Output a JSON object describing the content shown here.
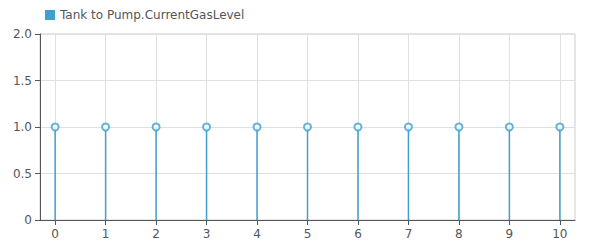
{
  "chart_data": {
    "type": "stem",
    "x": [
      0,
      1,
      2,
      3,
      4,
      5,
      6,
      7,
      8,
      9,
      10
    ],
    "series": [
      {
        "name": "Tank to Pump.CurrentGasLevel",
        "color": "#3fa0d0",
        "values": [
          1,
          1,
          1,
          1,
          1,
          1,
          1,
          1,
          1,
          1,
          1
        ]
      }
    ],
    "xlim": [
      -0.3,
      10.3
    ],
    "xticks": [
      0,
      1,
      2,
      3,
      4,
      5,
      6,
      7,
      8,
      9,
      10
    ],
    "ylim": [
      0,
      2.0
    ],
    "yticks": [
      0,
      0.5,
      {
        "value": 1.0,
        "label": "1.0"
      },
      {
        "value": 1.5,
        "label": "1.5"
      },
      {
        "value": 2.0,
        "label": "2.0"
      }
    ],
    "grid": true,
    "legend": "upper left"
  }
}
